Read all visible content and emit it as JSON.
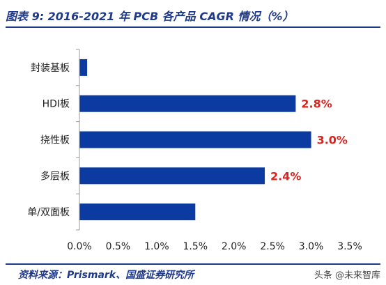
{
  "header": {
    "title": "图表 9:  2016-2021 年 PCB 各产品 CAGR 情况（%）"
  },
  "footer": {
    "source": "资料来源：Prismark、国盛证券研究所",
    "watermark": "头条 @未来智库"
  },
  "chart_data": {
    "type": "bar",
    "orientation": "horizontal",
    "categories": [
      "封装基板",
      "HDI板",
      "挠性板",
      "多层板",
      "单/双面板"
    ],
    "values": [
      0.1,
      2.8,
      3.0,
      2.4,
      1.5
    ],
    "data_labels": [
      "",
      "2.8%",
      "3.0%",
      "2.4%",
      ""
    ],
    "xlim": [
      0,
      3.5
    ],
    "x_ticks": [
      "0.0%",
      "0.5%",
      "1.0%",
      "1.5%",
      "2.0%",
      "2.5%",
      "3.0%",
      "3.5%"
    ],
    "grid": false,
    "colors": {
      "bar": "#0b3aa0",
      "label": "#e0201b",
      "title": "#1f3a8a"
    }
  }
}
